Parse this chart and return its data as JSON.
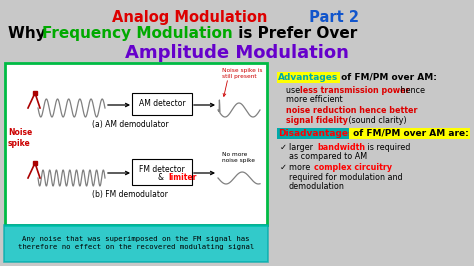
{
  "bg_color": "#c8c8c8",
  "title1_red": "Analog Modulation",
  "title1_blue": " Part 2",
  "title2_why": "Why ",
  "title2_green": "Frequency Modulation",
  "title2_rest": " is Prefer Over",
  "title3_purple": "Amplitude Modulation",
  "box_outline": "#00bb44",
  "noise_label": "Noise\nspike",
  "am_label": "AM detector",
  "fm_label": "FM detector\n& limiter",
  "fm_limiter_red": "limiter",
  "am_demo_label": "(a) AM demodulator",
  "fm_demo_label": "(b) FM demodulator",
  "noise_spike_label": "Noise spike is\nstill present",
  "no_more_label": "No more\nnoise spike",
  "adv_title_cyan": "Advantages",
  "adv_title_rest": " of FM/PM over AM:",
  "adv1a": "use ",
  "adv1b": "less transmission power",
  "adv1c": " hence",
  "adv1d": "more efficient",
  "adv2a": "noise reduction hence better",
  "adv2b": "signal fidelity",
  "adv2c": " (sound clarity)",
  "disadv_title_red": "Disadvantages",
  "disadv_title_rest": " of FM/PM over AM are:",
  "disadv1a": " larger ",
  "disadv1b": "bandwidth",
  "disadv1c": " is required",
  "disadv1d": "as compared to AM",
  "disadv2a": " more ",
  "disadv2b": "complex circuitry",
  "disadv2c": "required for modulation and",
  "disadv2d": "demodulation",
  "bottom_text": "Any noise that was superimposed on the FM signal has\ntherefore no effect on the recovered modulating signal",
  "cyan_bg": "#00cccc",
  "cyan_border": "#00aaaa"
}
